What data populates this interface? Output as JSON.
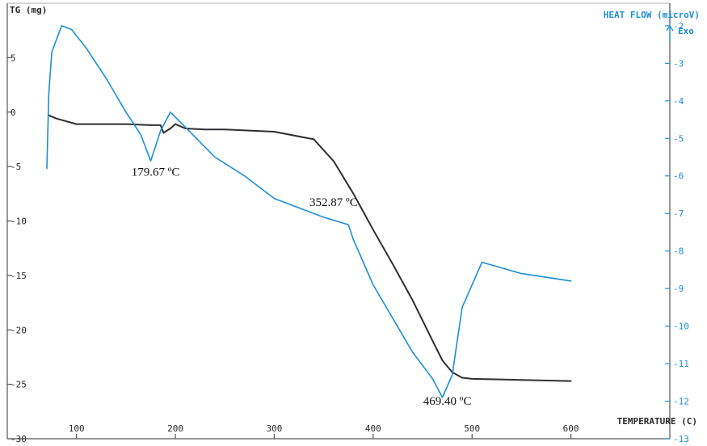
{
  "chart_data": {
    "type": "line",
    "left_axis_label": "TG (mg)",
    "right_axis_label": "HEAT FLOW (microV)",
    "right_axis_sublabel": "Exo",
    "x_axis_label": "TEMPERATURE (C)",
    "x_ticks": [
      100,
      200,
      300,
      400,
      500,
      600
    ],
    "xlim": [
      30,
      700
    ],
    "y_left_ticks": [
      5,
      0,
      -5,
      -10,
      -15,
      -20,
      -25,
      -30
    ],
    "ylim_left": [
      -30,
      10
    ],
    "y_right_ticks": [
      -2,
      -3,
      -4,
      -5,
      -6,
      -7,
      -8,
      -9,
      -10,
      -11,
      -12,
      -13
    ],
    "ylim_right": [
      -13,
      -1.4
    ],
    "grid": false,
    "colors": {
      "tg": "#2f2f33",
      "heat_flow": "#1a8fd6",
      "axis": "#444444"
    },
    "series": [
      {
        "name": "TG",
        "axis": "left",
        "x": [
          72,
          80,
          100,
          150,
          175,
          185,
          188,
          195,
          200,
          210,
          230,
          250,
          300,
          340,
          360,
          380,
          400,
          420,
          440,
          460,
          470,
          480,
          490,
          500,
          550,
          600
        ],
        "y": [
          -0.3,
          -0.6,
          -1.1,
          -1.1,
          -1.2,
          -1.2,
          -1.9,
          -1.5,
          -1.1,
          -1.5,
          -1.6,
          -1.6,
          -1.8,
          -2.5,
          -4.5,
          -7.5,
          -10.8,
          -14.0,
          -17.3,
          -21.0,
          -22.8,
          -23.9,
          -24.4,
          -24.5,
          -24.6,
          -24.7
        ]
      },
      {
        "name": "Heat flow",
        "axis": "right",
        "x": [
          70,
          72,
          75,
          85,
          95,
          110,
          130,
          150,
          165,
          175,
          185,
          195,
          210,
          240,
          270,
          300,
          330,
          350,
          375,
          380,
          400,
          420,
          440,
          460,
          470,
          480,
          490,
          510,
          550,
          600
        ],
        "y": [
          -5.8,
          -3.8,
          -2.7,
          -2.0,
          -2.1,
          -2.6,
          -3.4,
          -4.3,
          -4.9,
          -5.6,
          -4.8,
          -4.3,
          -4.7,
          -5.5,
          -6.0,
          -6.6,
          -6.9,
          -7.1,
          -7.3,
          -7.7,
          -8.9,
          -9.8,
          -10.7,
          -11.4,
          -11.9,
          -11.3,
          -9.5,
          -8.3,
          -8.6,
          -8.8
        ]
      }
    ],
    "annotations": [
      {
        "text": "179.67 ºC",
        "x": 180,
        "y": -6.0,
        "axis": "right"
      },
      {
        "text": "352.87 ºC",
        "x": 360,
        "y": -6.8,
        "axis": "right"
      },
      {
        "text": "469.40 ºC",
        "x": 475,
        "y": -12.1,
        "axis": "right"
      }
    ]
  }
}
